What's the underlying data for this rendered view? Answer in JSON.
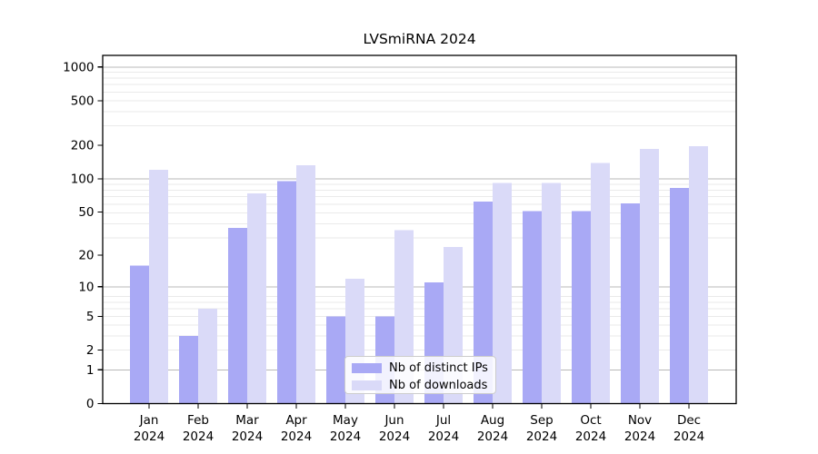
{
  "figure": {
    "background": "#ffffff"
  },
  "chart_data": {
    "type": "bar",
    "title": "LVSmiRNA 2024",
    "categories": [
      "Jan",
      "Feb",
      "Mar",
      "Apr",
      "May",
      "Jun",
      "Jul",
      "Aug",
      "Sep",
      "Oct",
      "Nov",
      "Dec"
    ],
    "x_tick_year": "2024",
    "series": [
      {
        "name": "Nb of distinct IPs",
        "color": "#a9a9f5",
        "values": [
          16,
          3,
          36,
          95,
          5,
          5,
          11,
          62,
          51,
          51,
          60,
          83
        ]
      },
      {
        "name": "Nb of downloads",
        "color": "#dadaf8",
        "values": [
          120,
          6,
          74,
          132,
          12,
          34,
          24,
          92,
          92,
          138,
          186,
          197
        ]
      }
    ],
    "xlabel": "",
    "ylabel": "",
    "y_ticks": [
      0,
      1,
      2,
      5,
      10,
      20,
      50,
      100,
      200,
      500,
      1000
    ],
    "y_scale": "log10(1+y)",
    "ylim": [
      0,
      1270
    ],
    "grid": true,
    "legend_position": "inside lower center",
    "colors": {
      "grid_major": "#b8b8b8",
      "grid_minor": "#eaeaea",
      "axis": "#000000",
      "text": "#000000",
      "legend_border": "#cccccc"
    }
  }
}
